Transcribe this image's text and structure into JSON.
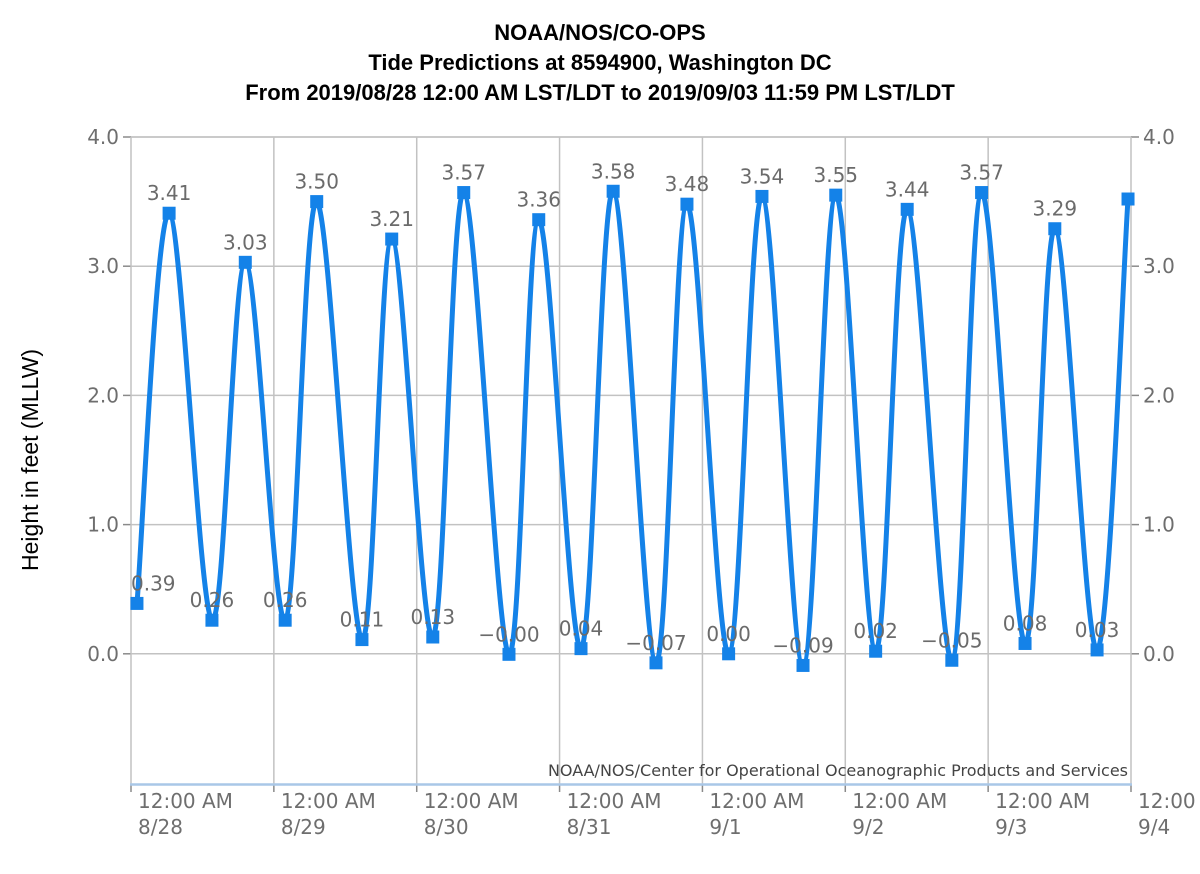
{
  "title": {
    "line1": "NOAA/NOS/CO-OPS",
    "line2": "Tide Predictions at 8594900, Washington DC",
    "line3": "From 2019/08/28 12:00 AM LST/LDT to 2019/09/03 11:59 PM LST/LDT"
  },
  "watermark": "NOAA/NOS/Center for Operational Oceanographic Products and Services",
  "y_axis": {
    "label": "Height in feet (MLLW)",
    "tick_labels": [
      "4.0",
      "3.0",
      "2.0",
      "1.0",
      "0.0"
    ],
    "tick_values": [
      4,
      3,
      2,
      1,
      0
    ],
    "range": [
      -1,
      4
    ]
  },
  "x_axis": {
    "ticks": [
      {
        "time": "12:00 AM",
        "date": "8/28"
      },
      {
        "time": "12:00 AM",
        "date": "8/29"
      },
      {
        "time": "12:00 AM",
        "date": "8/30"
      },
      {
        "time": "12:00 AM",
        "date": "8/31"
      },
      {
        "time": "12:00 AM",
        "date": "9/1"
      },
      {
        "time": "12:00 AM",
        "date": "9/2"
      },
      {
        "time": "12:00 AM",
        "date": "9/3"
      },
      {
        "time": "12:00",
        "date": "9/4"
      }
    ]
  },
  "colors": {
    "line": "#1482e8",
    "marker": "#1482e8",
    "grid": "#c2c2c2",
    "axis_bottom_blue": "#a9c7e7",
    "tick_mark": "#8a8a8a",
    "data_label_text": "#6b6b6b",
    "axis_tick_text": "#6e6e6e",
    "title_text": "#000000",
    "watermark_text": "#444444",
    "y_title_text": "#000000"
  },
  "chart_data": {
    "type": "line",
    "title": "Tide Predictions at 8594900, Washington DC",
    "xlabel": "",
    "ylabel": "Height in feet (MLLW)",
    "x_unit": "hours since 2019/08/28 12:00 AM",
    "x_range_hours": [
      0,
      168
    ],
    "ylim": [
      -1,
      4
    ],
    "grid": true,
    "legend": "none",
    "marker": "square",
    "points": [
      {
        "t": 1.0,
        "v": 0.39,
        "label": "0.39",
        "kind": "low"
      },
      {
        "t": 6.4,
        "v": 3.41,
        "label": "3.41",
        "kind": "high"
      },
      {
        "t": 13.6,
        "v": 0.26,
        "label": "0.26",
        "kind": "low"
      },
      {
        "t": 19.2,
        "v": 3.03,
        "label": "3.03",
        "kind": "high"
      },
      {
        "t": 25.9,
        "v": 0.26,
        "label": "0.26",
        "kind": "low"
      },
      {
        "t": 31.2,
        "v": 3.5,
        "label": "3.50",
        "kind": "high"
      },
      {
        "t": 38.8,
        "v": 0.11,
        "label": "0.11",
        "kind": "low"
      },
      {
        "t": 43.8,
        "v": 3.21,
        "label": "3.21",
        "kind": "high"
      },
      {
        "t": 50.7,
        "v": 0.13,
        "label": "0.13",
        "kind": "low"
      },
      {
        "t": 55.9,
        "v": 3.57,
        "label": "3.57",
        "kind": "high"
      },
      {
        "t": 63.5,
        "v": -0.004,
        "label": "−0.00",
        "kind": "low"
      },
      {
        "t": 68.5,
        "v": 3.36,
        "label": "3.36",
        "kind": "high"
      },
      {
        "t": 75.6,
        "v": 0.04,
        "label": "0.04",
        "kind": "low"
      },
      {
        "t": 81.0,
        "v": 3.58,
        "label": "3.58",
        "kind": "high"
      },
      {
        "t": 88.2,
        "v": -0.07,
        "label": "−0.07",
        "kind": "low"
      },
      {
        "t": 93.4,
        "v": 3.48,
        "label": "3.48",
        "kind": "high"
      },
      {
        "t": 100.4,
        "v": 0.0,
        "label": "0.00",
        "kind": "low"
      },
      {
        "t": 106.0,
        "v": 3.54,
        "label": "3.54",
        "kind": "high"
      },
      {
        "t": 112.9,
        "v": -0.09,
        "label": "−0.09",
        "kind": "low"
      },
      {
        "t": 118.4,
        "v": 3.55,
        "label": "3.55",
        "kind": "high"
      },
      {
        "t": 125.1,
        "v": 0.02,
        "label": "0.02",
        "kind": "low"
      },
      {
        "t": 130.4,
        "v": 3.44,
        "label": "3.44",
        "kind": "high"
      },
      {
        "t": 137.9,
        "v": -0.05,
        "label": "−0.05",
        "kind": "low"
      },
      {
        "t": 142.9,
        "v": 3.57,
        "label": "3.57",
        "kind": "high"
      },
      {
        "t": 150.2,
        "v": 0.08,
        "label": "0.08",
        "kind": "low"
      },
      {
        "t": 155.2,
        "v": 3.29,
        "label": "3.29",
        "kind": "high"
      },
      {
        "t": 162.3,
        "v": 0.03,
        "label": "0.03",
        "kind": "low"
      },
      {
        "t": 167.5,
        "v": 3.52,
        "label": "",
        "kind": "high"
      }
    ]
  }
}
